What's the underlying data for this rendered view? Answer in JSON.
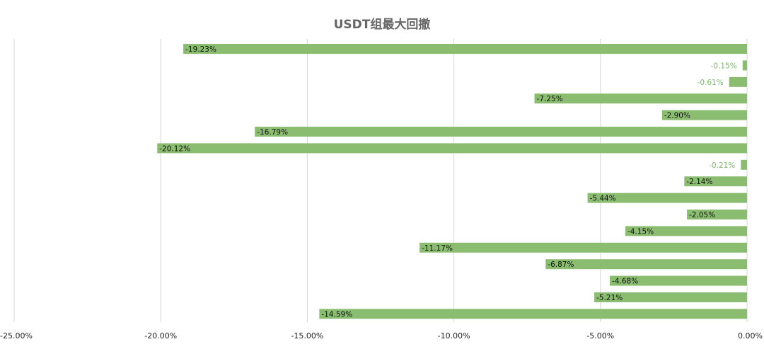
{
  "chart_data": {
    "type": "bar",
    "orientation": "horizontal",
    "title": "USDT组最大回撤",
    "xlabel": "",
    "ylabel": "",
    "xlim": [
      -25,
      0
    ],
    "x_ticks": [
      -25,
      -20,
      -15,
      -10,
      -5,
      0
    ],
    "x_tick_labels": [
      "-25.00%",
      "-20.00%",
      "-15.00%",
      "-10.00%",
      "-5.00%",
      "0.00%"
    ],
    "grid": "vertical",
    "legend": "none",
    "bar_color": "#8abd6f",
    "values": [
      -19.23,
      -0.15,
      -0.61,
      -7.25,
      -2.9,
      -16.79,
      -20.12,
      -0.21,
      -2.14,
      -5.44,
      -2.05,
      -4.15,
      -11.17,
      -6.87,
      -4.68,
      -5.21,
      -14.59
    ],
    "data_labels": [
      "-19.23%",
      "-0.15%",
      "-0.61%",
      "-7.25%",
      "-2.90%",
      "-16.79%",
      "-20.12%",
      "-0.21%",
      "-2.14%",
      "-5.44%",
      "-2.05%",
      "-4.15%",
      "-11.17%",
      "-6.87%",
      "-4.68%",
      "-5.21%",
      "-14.59%"
    ]
  }
}
